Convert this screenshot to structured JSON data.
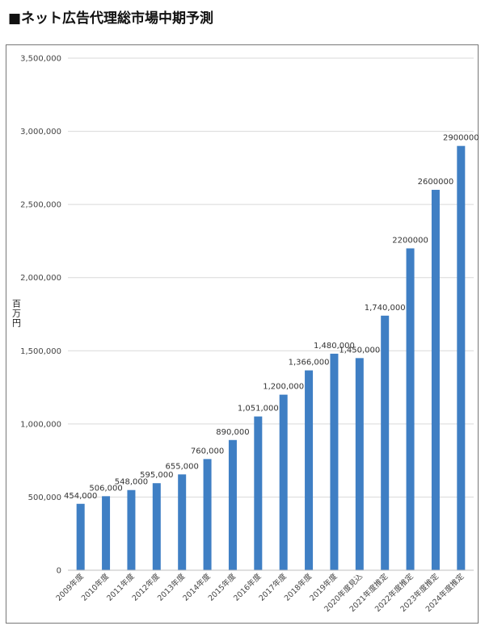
{
  "page": {
    "title": "■ネット広告代理総市場中期予測"
  },
  "chart_data": {
    "type": "bar",
    "ylabel": "百万円",
    "ylim": [
      0,
      3500000
    ],
    "yticks": [
      0,
      500000,
      1000000,
      1500000,
      2000000,
      2500000,
      3000000,
      3500000
    ],
    "ytick_labels": [
      "0",
      "500,000",
      "1,000,000",
      "1,500,000",
      "2,000,000",
      "2,500,000",
      "3,000,000",
      "3,500,000"
    ],
    "grid": true,
    "bar_color": "#3f7fc4",
    "categories": [
      "2009年度",
      "2010年度",
      "2011年度",
      "2012年度",
      "2013年度",
      "2014年度",
      "2015年度",
      "2016年度",
      "2017年度",
      "2018年度",
      "2019年度",
      "2020年度見込",
      "2021年度推定",
      "2022年度推定",
      "2023年度推定",
      "2024年度推定"
    ],
    "values": [
      454000,
      506000,
      548000,
      595000,
      655000,
      760000,
      890000,
      1051000,
      1200000,
      1366000,
      1480000,
      1450000,
      1740000,
      2200000,
      2600000,
      2900000
    ],
    "data_labels": [
      "454,000",
      "506,000",
      "548,000",
      "595,000",
      "655,000",
      "760,000",
      "890,000",
      "1,051,000",
      "1,200,000",
      "1,366,000",
      "1,480,000",
      "1,450,000",
      "1,740,000",
      "2200000",
      "2600000",
      "2900000"
    ]
  }
}
